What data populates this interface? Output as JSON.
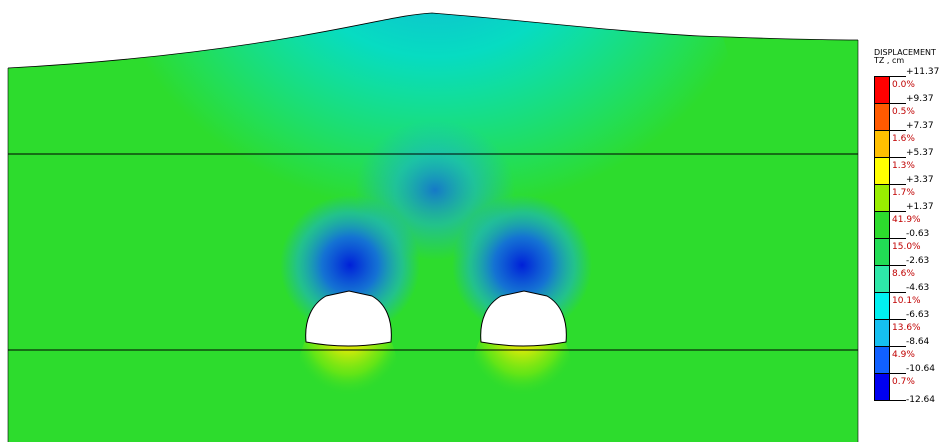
{
  "legend": {
    "title": "DISPLACEMENT",
    "subtitle": "TZ , cm",
    "bands": [
      {
        "upper": "+11.37",
        "pct": "0.0%",
        "color": "#ff0000"
      },
      {
        "upper": "+9.37",
        "pct": "0.5%",
        "color": "#ff5a00"
      },
      {
        "upper": "+7.37",
        "pct": "1.6%",
        "color": "#ffbf00"
      },
      {
        "upper": "+5.37",
        "pct": "1.3%",
        "color": "#ffff00"
      },
      {
        "upper": "+3.37",
        "pct": "1.7%",
        "color": "#99ee00"
      },
      {
        "upper": "+1.37",
        "pct": "41.9%",
        "color": "#2ddc2d"
      },
      {
        "upper": "-0.63",
        "pct": "15.0%",
        "color": "#22dd55"
      },
      {
        "upper": "-2.63",
        "pct": "8.6%",
        "color": "#2ee8a8"
      },
      {
        "upper": "-4.63",
        "pct": "10.1%",
        "color": "#00f0f0"
      },
      {
        "upper": "-6.63",
        "pct": "13.6%",
        "color": "#15bff0"
      },
      {
        "upper": "-8.64",
        "pct": "4.9%",
        "color": "#1060ff"
      },
      {
        "upper": "-10.64",
        "pct": "0.7%",
        "color": "#0000f0"
      }
    ],
    "bottom": "-12.64"
  },
  "colors": {
    "ground": "#2ddc2d",
    "settlement_light": "#00e6e6",
    "settlement_mid": "#18a8e8",
    "settlement_deep": "#0030e0",
    "heave": "#ffbf00",
    "tunnel_fill": "#ffffff",
    "boundary": "#000000"
  }
}
